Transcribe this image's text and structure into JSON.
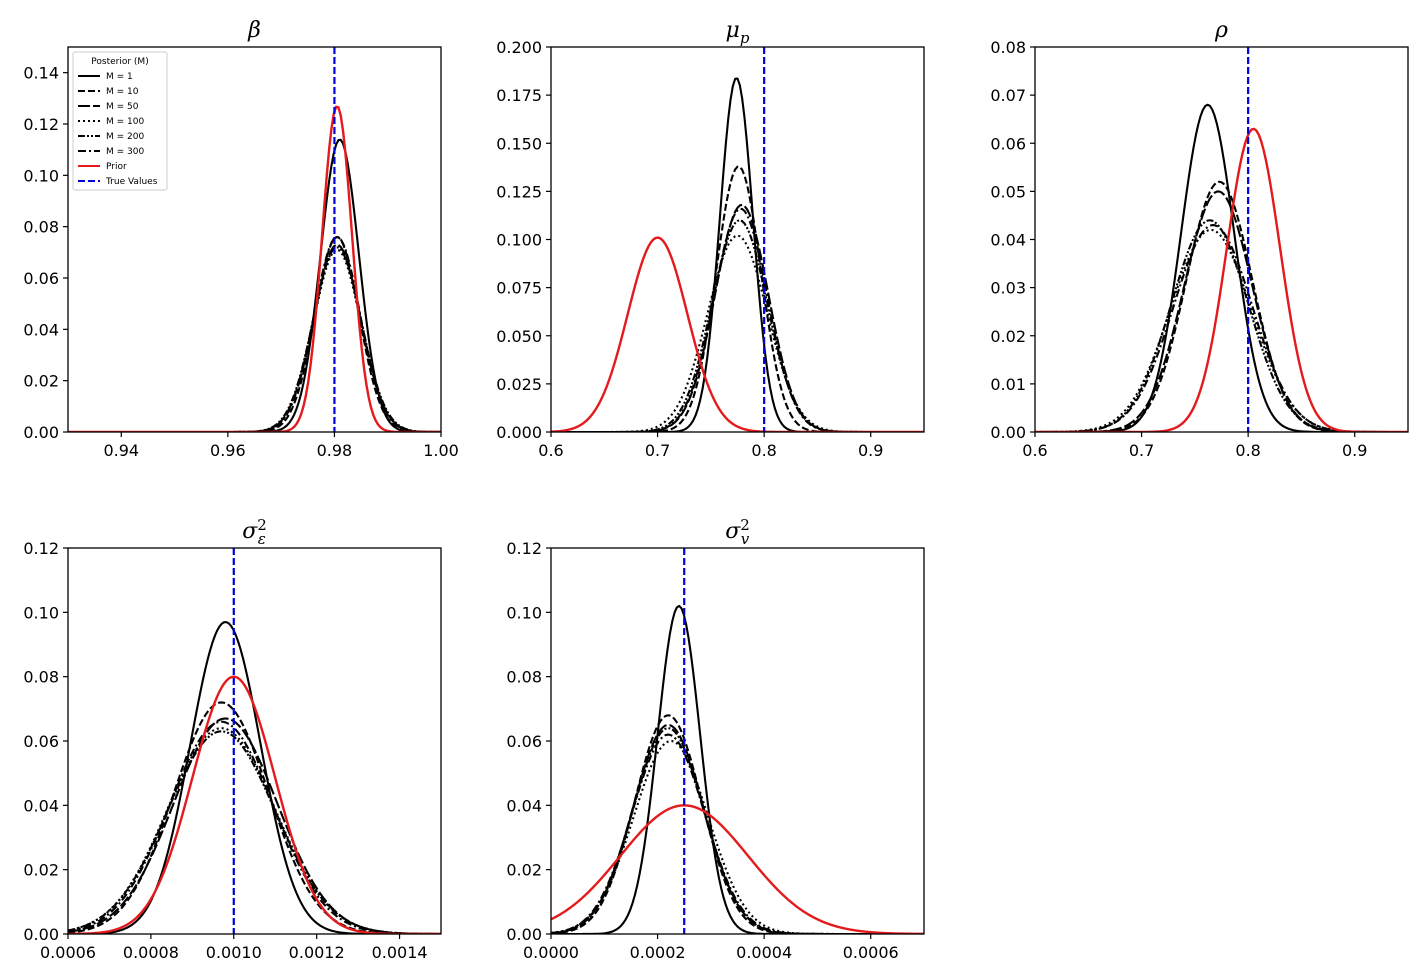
{
  "legend": {
    "title": "Posterior (M)",
    "entries": [
      {
        "label": "M = 1",
        "style": "solid",
        "color": "#000000"
      },
      {
        "label": "M = 10",
        "style": "dashed",
        "color": "#000000"
      },
      {
        "label": "M = 50",
        "style": "longdash",
        "color": "#000000"
      },
      {
        "label": "M = 100",
        "style": "dotted",
        "color": "#000000"
      },
      {
        "label": "M = 200",
        "style": "dashdotdot",
        "color": "#000000"
      },
      {
        "label": "M = 300",
        "style": "dashdot",
        "color": "#000000"
      },
      {
        "label": "Prior",
        "style": "solid",
        "color": "#e41a1c"
      },
      {
        "label": "True Values",
        "style": "dashed",
        "color": "#0000dd"
      }
    ]
  },
  "chart_data": [
    {
      "type": "line",
      "title": "β",
      "title_main": "β",
      "xlim": [
        0.93,
        1.0
      ],
      "ylim": [
        0,
        0.15
      ],
      "xticks": [
        0.94,
        0.96,
        0.98,
        1.0
      ],
      "xtick_labels": [
        "0.94",
        "0.96",
        "0.98",
        "1.00"
      ],
      "yticks": [
        0,
        0.02,
        0.04,
        0.06,
        0.08,
        0.1,
        0.12,
        0.14
      ],
      "ytick_labels": [
        "0.00",
        "0.02",
        "0.04",
        "0.06",
        "0.08",
        "0.10",
        "0.12",
        "0.14"
      ],
      "true_value": 0.98,
      "has_legend": true,
      "series": [
        {
          "name": "M = 1",
          "peaks": [
            {
              "mu": 0.981,
              "sigma": 0.0036,
              "amp": 0.114
            }
          ]
        },
        {
          "name": "M = 10",
          "peaks": [
            {
              "mu": 0.9805,
              "sigma": 0.0041,
              "amp": 0.076
            }
          ]
        },
        {
          "name": "M = 50",
          "peaks": [
            {
              "mu": 0.9805,
              "sigma": 0.0044,
              "amp": 0.073
            }
          ]
        },
        {
          "name": "M = 100",
          "peaks": [
            {
              "mu": 0.9805,
              "sigma": 0.0044,
              "amp": 0.071
            }
          ]
        },
        {
          "name": "M = 200",
          "peaks": [
            {
              "mu": 0.9805,
              "sigma": 0.0045,
              "amp": 0.072
            }
          ]
        },
        {
          "name": "M = 300",
          "peaks": [
            {
              "mu": 0.9805,
              "sigma": 0.0043,
              "amp": 0.076
            }
          ]
        },
        {
          "name": "Prior",
          "peaks": [
            {
              "mu": 0.9805,
              "sigma": 0.0028,
              "amp": 0.127
            }
          ]
        }
      ]
    },
    {
      "type": "line",
      "title": "μp",
      "title_main": "μ",
      "title_sub": "p",
      "xlim": [
        0.6,
        0.95
      ],
      "ylim": [
        0,
        0.2
      ],
      "xticks": [
        0.6,
        0.7,
        0.8,
        0.9
      ],
      "xtick_labels": [
        "0.6",
        "0.7",
        "0.8",
        "0.9"
      ],
      "yticks": [
        0,
        0.025,
        0.05,
        0.075,
        0.1,
        0.125,
        0.15,
        0.175,
        0.2
      ],
      "ytick_labels": [
        "0.000",
        "0.025",
        "0.050",
        "0.075",
        "0.100",
        "0.125",
        "0.150",
        "0.175",
        "0.200"
      ],
      "true_value": 0.8,
      "has_legend": false,
      "series": [
        {
          "name": "M = 1",
          "peaks": [
            {
              "mu": 0.774,
              "sigma": 0.0155,
              "amp": 0.184
            }
          ]
        },
        {
          "name": "M = 10",
          "peaks": [
            {
              "mu": 0.776,
              "sigma": 0.021,
              "amp": 0.138
            }
          ]
        },
        {
          "name": "M = 50",
          "peaks": [
            {
              "mu": 0.779,
              "sigma": 0.025,
              "amp": 0.118
            }
          ]
        },
        {
          "name": "M = 100",
          "peaks": [
            {
              "mu": 0.775,
              "sigma": 0.028,
              "amp": 0.102
            }
          ]
        },
        {
          "name": "M = 200",
          "peaks": [
            {
              "mu": 0.777,
              "sigma": 0.026,
              "amp": 0.11
            }
          ]
        },
        {
          "name": "M = 300",
          "peaks": [
            {
              "mu": 0.778,
              "sigma": 0.025,
              "amp": 0.116
            }
          ]
        },
        {
          "name": "Prior",
          "peaks": [
            {
              "mu": 0.7,
              "sigma": 0.028,
              "amp": 0.101
            }
          ]
        }
      ]
    },
    {
      "type": "line",
      "title": "ρ",
      "title_main": "ρ",
      "xlim": [
        0.6,
        0.95
      ],
      "ylim": [
        0,
        0.08
      ],
      "xticks": [
        0.6,
        0.7,
        0.8,
        0.9
      ],
      "xtick_labels": [
        "0.6",
        "0.7",
        "0.8",
        "0.9"
      ],
      "yticks": [
        0,
        0.01,
        0.02,
        0.03,
        0.04,
        0.05,
        0.06,
        0.07,
        0.08
      ],
      "ytick_labels": [
        "0.00",
        "0.01",
        "0.02",
        "0.03",
        "0.04",
        "0.05",
        "0.06",
        "0.07",
        "0.08"
      ],
      "true_value": 0.8,
      "has_legend": false,
      "series": [
        {
          "name": "M = 1",
          "peaks": [
            {
              "mu": 0.762,
              "sigma": 0.025,
              "amp": 0.068
            }
          ]
        },
        {
          "name": "M = 10",
          "peaks": [
            {
              "mu": 0.773,
              "sigma": 0.031,
              "amp": 0.052
            }
          ]
        },
        {
          "name": "M = 50",
          "peaks": [
            {
              "mu": 0.772,
              "sigma": 0.032,
              "amp": 0.05
            }
          ]
        },
        {
          "name": "M = 100",
          "peaks": [
            {
              "mu": 0.765,
              "sigma": 0.038,
              "amp": 0.042
            }
          ]
        },
        {
          "name": "M = 200",
          "peaks": [
            {
              "mu": 0.764,
              "sigma": 0.036,
              "amp": 0.044
            }
          ]
        },
        {
          "name": "M = 300",
          "peaks": [
            {
              "mu": 0.767,
              "sigma": 0.037,
              "amp": 0.043
            }
          ]
        },
        {
          "name": "Prior",
          "peaks": [
            {
              "mu": 0.805,
              "sigma": 0.025,
              "amp": 0.063
            }
          ]
        }
      ]
    },
    {
      "type": "line",
      "title": "σε²",
      "title_main": "σ",
      "title_sub": "ε",
      "title_sup": "2",
      "xlim": [
        0.0006,
        0.0015
      ],
      "ylim": [
        0,
        0.12
      ],
      "xticks": [
        0.0006,
        0.0008,
        0.001,
        0.0012,
        0.0014
      ],
      "xtick_labels": [
        "0.0006",
        "0.0008",
        "0.0010",
        "0.0012",
        "0.0014"
      ],
      "yticks": [
        0,
        0.02,
        0.04,
        0.06,
        0.08,
        0.1,
        0.12
      ],
      "ytick_labels": [
        "0.00",
        "0.02",
        "0.04",
        "0.06",
        "0.08",
        "0.10",
        "0.12"
      ],
      "true_value": 0.001,
      "has_legend": false,
      "series": [
        {
          "name": "M = 1",
          "peaks": [
            {
              "mu": 0.00098,
              "sigma": 8.5e-05,
              "amp": 0.097
            }
          ]
        },
        {
          "name": "M = 10",
          "peaks": [
            {
              "mu": 0.00097,
              "sigma": 0.000115,
              "amp": 0.072
            }
          ]
        },
        {
          "name": "M = 50",
          "peaks": [
            {
              "mu": 0.00098,
              "sigma": 0.000125,
              "amp": 0.067
            }
          ]
        },
        {
          "name": "M = 100",
          "peaks": [
            {
              "mu": 0.00097,
              "sigma": 0.00013,
              "amp": 0.064
            }
          ]
        },
        {
          "name": "M = 200",
          "peaks": [
            {
              "mu": 0.00097,
              "sigma": 0.00013,
              "amp": 0.063
            }
          ]
        },
        {
          "name": "M = 300",
          "peaks": [
            {
              "mu": 0.00097,
              "sigma": 0.000125,
              "amp": 0.066
            }
          ]
        },
        {
          "name": "Prior",
          "peaks": [
            {
              "mu": 0.001,
              "sigma": 0.0001,
              "amp": 0.08
            }
          ]
        }
      ]
    },
    {
      "type": "line",
      "title": "σv²",
      "title_main": "σ",
      "title_sub": "v",
      "title_sup": "2",
      "xlim": [
        0,
        0.0007
      ],
      "ylim": [
        0,
        0.12
      ],
      "xticks": [
        0,
        0.0002,
        0.0004,
        0.0006
      ],
      "xtick_labels": [
        "0.0000",
        "0.0002",
        "0.0004",
        "0.0006"
      ],
      "yticks": [
        0,
        0.02,
        0.04,
        0.06,
        0.08,
        0.1,
        0.12
      ],
      "ytick_labels": [
        "0.00",
        "0.02",
        "0.04",
        "0.06",
        "0.08",
        "0.10",
        "0.12"
      ],
      "true_value": 0.00025,
      "has_legend": false,
      "series": [
        {
          "name": "M = 1",
          "peaks": [
            {
              "mu": 0.00024,
              "sigma": 4e-05,
              "amp": 0.102
            }
          ]
        },
        {
          "name": "M = 10",
          "peaks": [
            {
              "mu": 0.00022,
              "sigma": 6.3e-05,
              "amp": 0.068
            }
          ]
        },
        {
          "name": "M = 50",
          "peaks": [
            {
              "mu": 0.00022,
              "sigma": 6.6e-05,
              "amp": 0.065
            }
          ]
        },
        {
          "name": "M = 100",
          "peaks": [
            {
              "mu": 0.000225,
              "sigma": 7e-05,
              "amp": 0.06
            }
          ]
        },
        {
          "name": "M = 200",
          "peaks": [
            {
              "mu": 0.00022,
              "sigma": 6.6e-05,
              "amp": 0.064
            }
          ]
        },
        {
          "name": "M = 300",
          "peaks": [
            {
              "mu": 0.00022,
              "sigma": 6.8e-05,
              "amp": 0.062
            }
          ]
        },
        {
          "name": "Prior",
          "peaks": [
            {
              "mu": 0.00025,
              "sigma": 0.00012,
              "amp": 0.04
            }
          ]
        }
      ]
    }
  ]
}
